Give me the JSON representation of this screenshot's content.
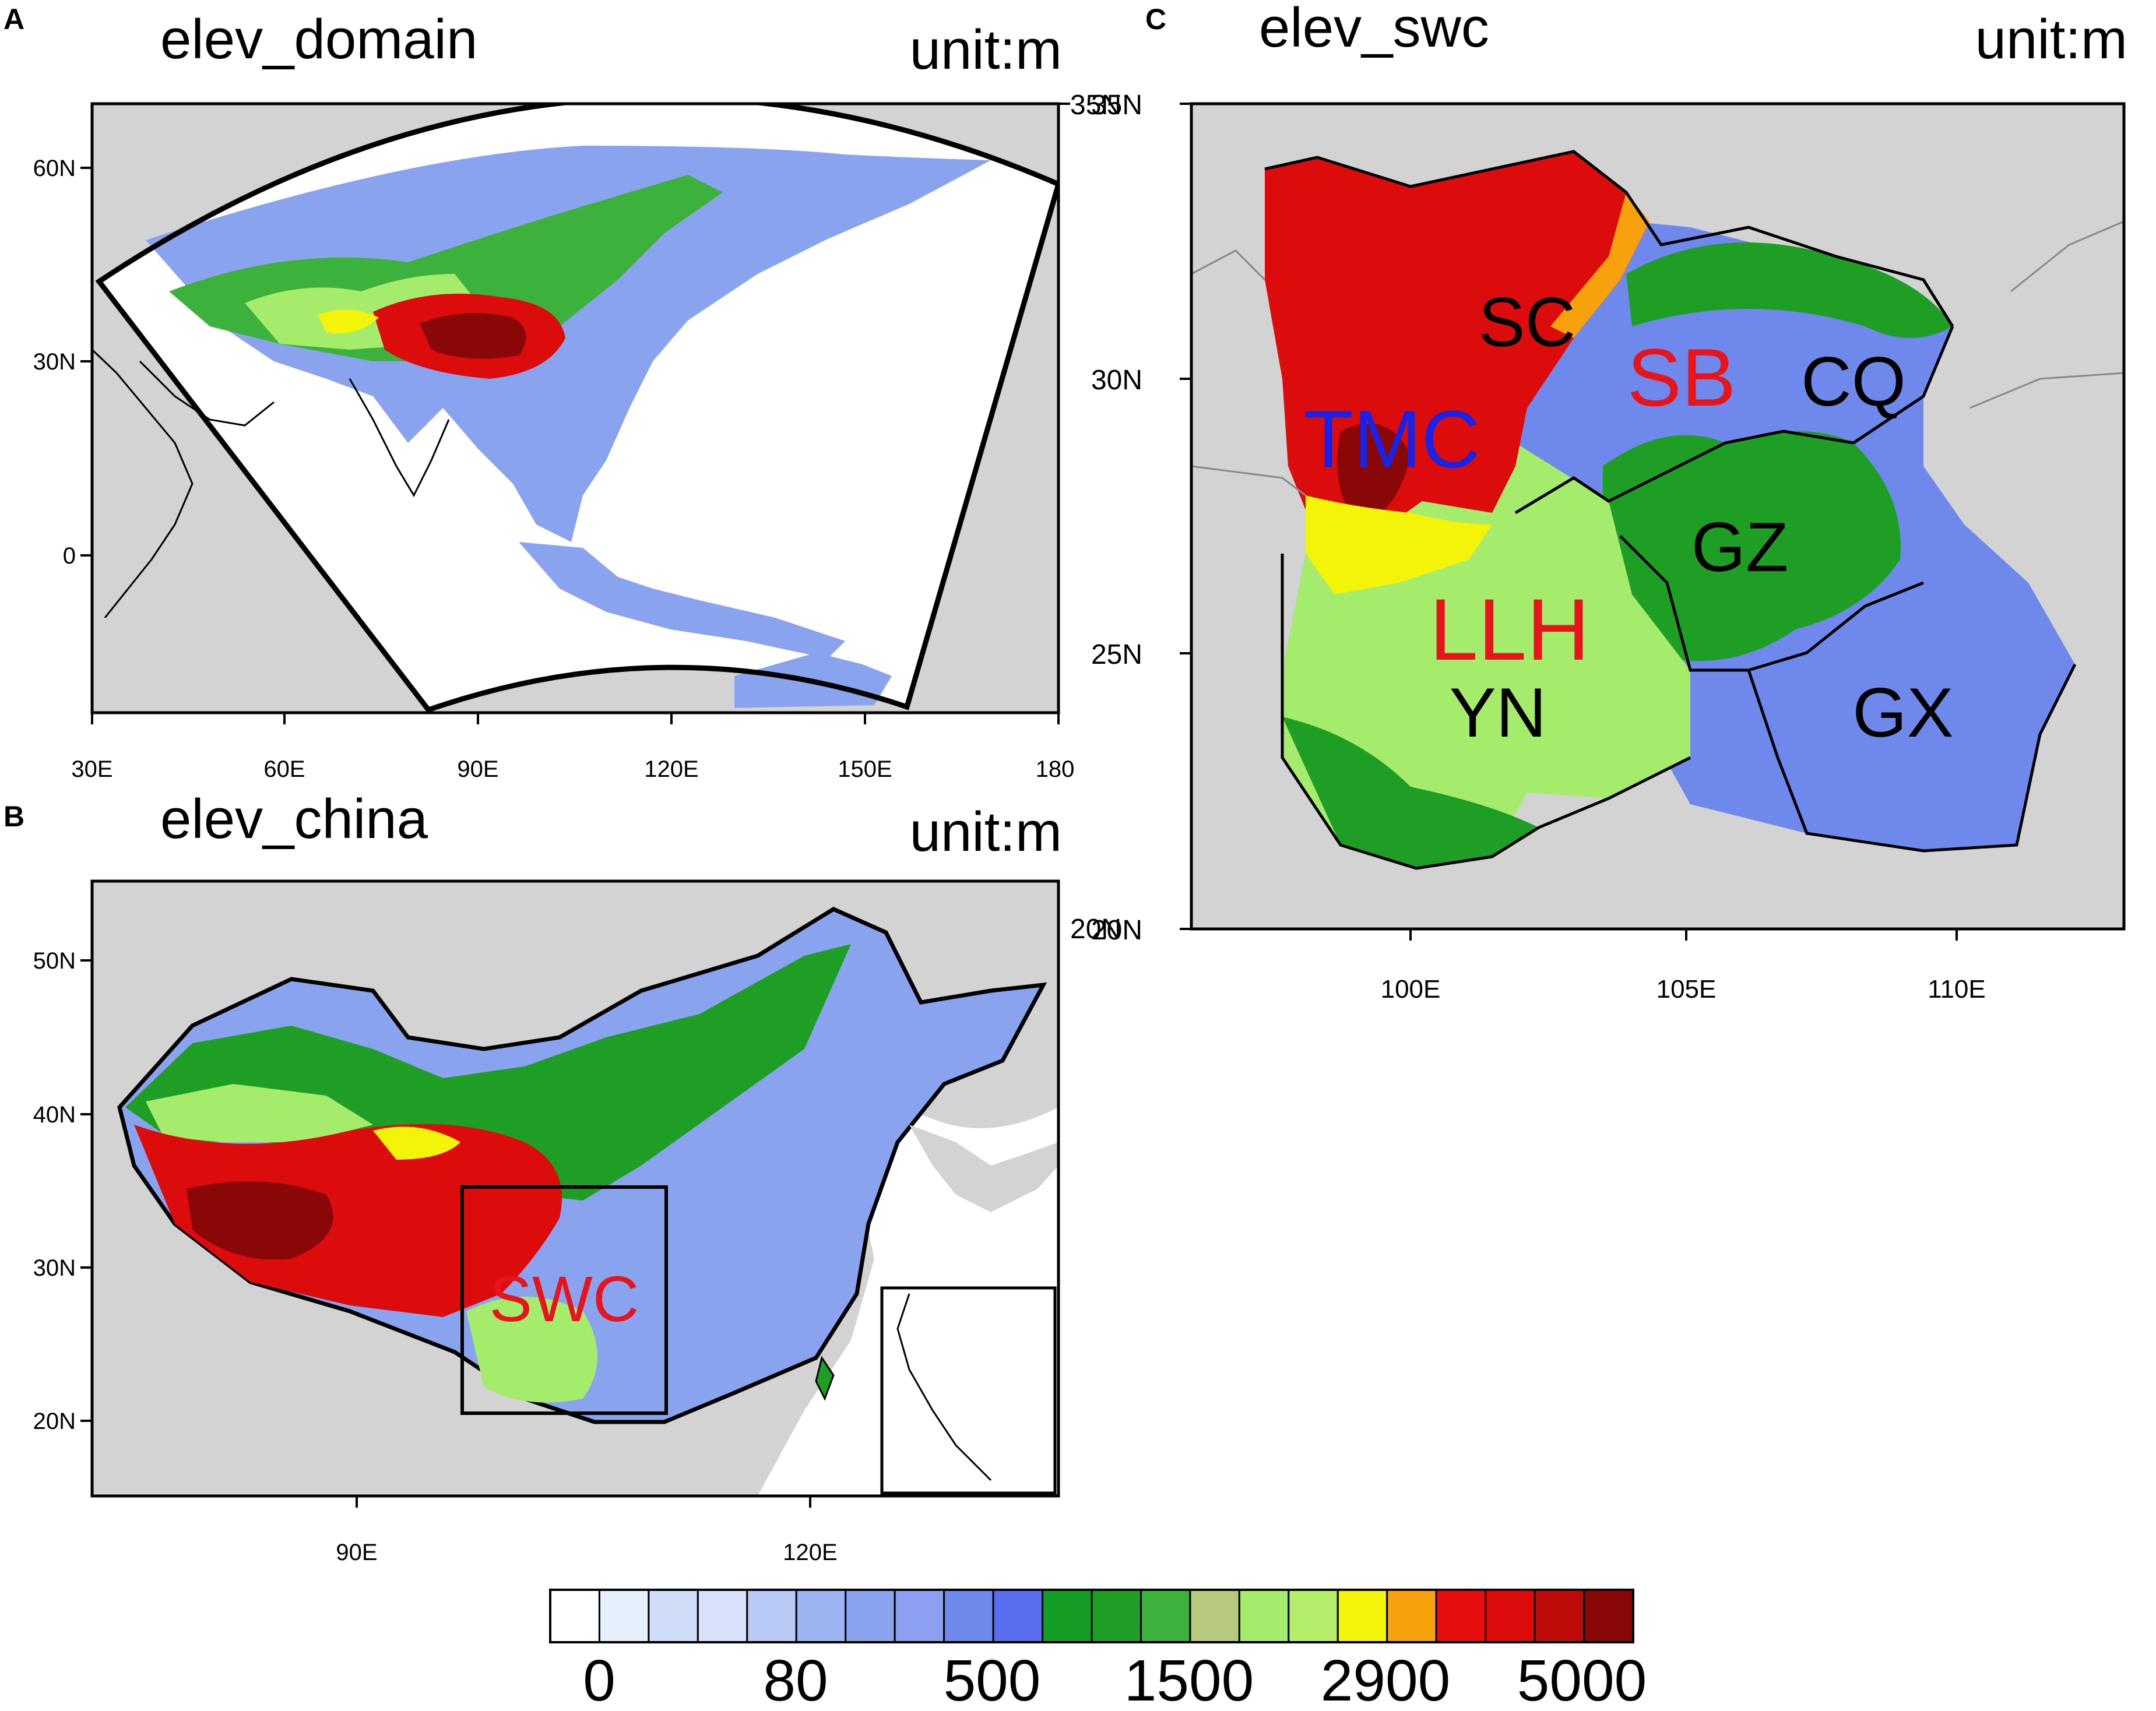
{
  "panels": {
    "a": {
      "letter": "A",
      "title": "elev_domain",
      "unit": "unit:m",
      "lon_ticks": [
        "30E",
        "60E",
        "90E",
        "120E",
        "150E",
        "180"
      ],
      "lat_ticks": [
        "60N",
        "30N",
        "0"
      ],
      "right_label": "35N"
    },
    "b": {
      "letter": "B",
      "title": "elev_china",
      "unit": "unit:m",
      "lon_ticks": [
        "90E",
        "120E"
      ],
      "lat_ticks": [
        "50N",
        "40N",
        "30N",
        "20N"
      ],
      "right_label": "20N",
      "box_label": "SWC"
    },
    "c": {
      "letter": "C",
      "title": "elev_swc",
      "unit": "unit:m",
      "lon_ticks": [
        "100E",
        "105E",
        "110E"
      ],
      "lat_ticks": [
        "35N",
        "30N",
        "25N",
        "20N"
      ],
      "regions": [
        {
          "label": "SC",
          "color": "#000000"
        },
        {
          "label": "SB",
          "color": "#e8141c"
        },
        {
          "label": "CQ",
          "color": "#000000"
        },
        {
          "label": "TMC",
          "color": "#1a22e6"
        },
        {
          "label": "GZ",
          "color": "#000000"
        },
        {
          "label": "LLH",
          "color": "#e8141c"
        },
        {
          "label": "YN",
          "color": "#000000"
        },
        {
          "label": "GX",
          "color": "#000000"
        }
      ]
    }
  },
  "colorbar": {
    "colors": [
      "#ffffff",
      "#e6f0fc",
      "#cfdcf7",
      "#d9e0fa",
      "#b9c9f5",
      "#9cb4f1",
      "#8aa3ee",
      "#8d9ff0",
      "#6f88ec",
      "#5a6ff0",
      "#159e25",
      "#1f9e26",
      "#3cb23c",
      "#b6c97e",
      "#a6ec6c",
      "#b4ee6a",
      "#f4f40a",
      "#f7a10c",
      "#e60e0e",
      "#dc0c0c",
      "#bf0a0a",
      "#8a0707"
    ],
    "labels": [
      "0",
      "80",
      "500",
      "1500",
      "2900",
      "5000"
    ]
  },
  "colors": {
    "land_background": "#d3d3d3",
    "low": "#6f88ec",
    "mid": "#1f9e26",
    "highland": "#a6ec6c",
    "plateau": "#dc0c0c",
    "peak": "#8a0707",
    "snowline": "#f4f40a"
  }
}
